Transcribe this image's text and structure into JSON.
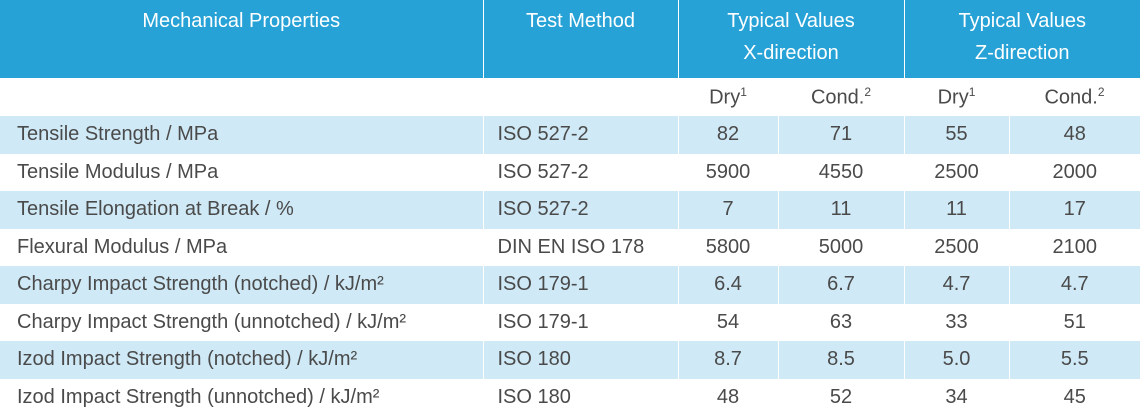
{
  "table": {
    "header": {
      "property": "Mechanical Properties",
      "method": "Test Method",
      "x": [
        "Typical Values",
        "X-direction"
      ],
      "z": [
        "Typical Values",
        "Z-direction"
      ]
    },
    "subheader": [
      {
        "text": "Dry",
        "sup": "1"
      },
      {
        "text": "Cond.",
        "sup": "2"
      },
      {
        "text": "Dry",
        "sup": "1"
      },
      {
        "text": "Cond.",
        "sup": "2"
      }
    ],
    "rows": [
      [
        "Tensile Strength / MPa",
        "ISO 527-2",
        "82",
        "71",
        "55",
        "48"
      ],
      [
        "Tensile Modulus / MPa",
        "ISO 527-2",
        "5900",
        "4550",
        "2500",
        "2000"
      ],
      [
        "Tensile Elongation at Break / %",
        "ISO 527-2",
        "7",
        "11",
        "11",
        "17"
      ],
      [
        "Flexural Modulus / MPa",
        "DIN EN ISO 178",
        "5800",
        "5000",
        "2500",
        "2100"
      ],
      [
        "Charpy Impact Strength (notched) / kJ/m²",
        "ISO 179-1",
        "6.4",
        "6.7",
        "4.7",
        "4.7"
      ],
      [
        "Charpy Impact Strength (unnotched) / kJ/m²",
        "ISO 179-1",
        "54",
        "63",
        "33",
        "51"
      ],
      [
        "Izod Impact Strength (notched) / kJ/m²",
        "ISO 180",
        "8.7",
        "8.5",
        "5.0",
        "5.5"
      ],
      [
        "Izod Impact Strength (unnotched) / kJ/m²",
        "ISO 180",
        "48",
        "52",
        "34",
        "45"
      ]
    ]
  }
}
